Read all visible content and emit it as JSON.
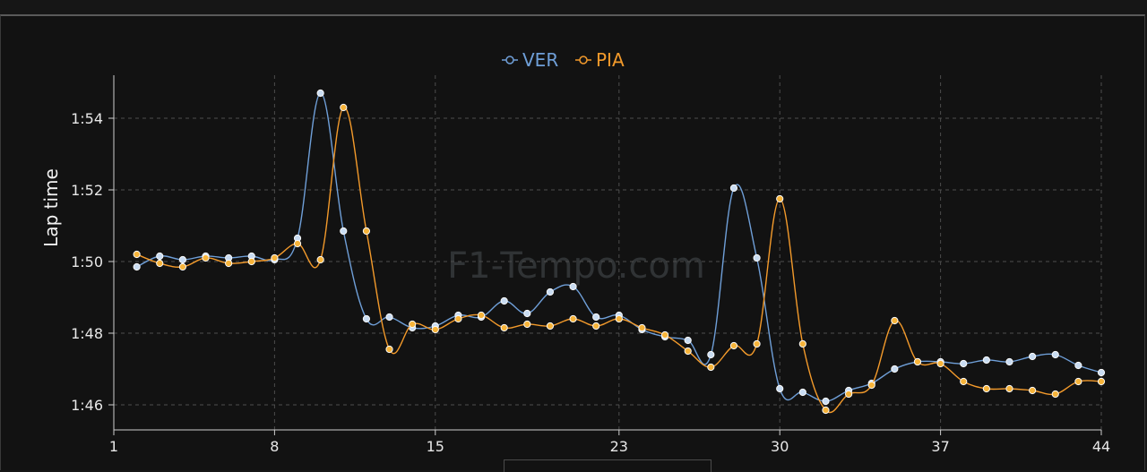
{
  "watermark": "F1-Tempo.com",
  "chart_data": {
    "type": "line",
    "ylabel": "Lap time",
    "xlabel": "",
    "x_ticks": [
      1,
      8,
      15,
      23,
      30,
      37,
      44
    ],
    "y_ticks": [
      {
        "value": 106,
        "label": "1:46"
      },
      {
        "value": 108,
        "label": "1:48"
      },
      {
        "value": 110,
        "label": "1:50"
      },
      {
        "value": 112,
        "label": "1:52"
      },
      {
        "value": 114,
        "label": "1:54"
      }
    ],
    "xlim": [
      1,
      44
    ],
    "ylim": [
      105.3,
      115.2
    ],
    "grid": true,
    "legend_position": "top-center",
    "series": [
      {
        "name": "VER",
        "color": "#6f9fd8",
        "marker_fill": "#c9dcf2",
        "x": [
          2,
          3,
          4,
          5,
          6,
          7,
          8,
          9,
          10,
          11,
          12,
          13,
          14,
          15,
          16,
          17,
          18,
          19,
          20,
          21,
          22,
          23,
          24,
          25,
          26,
          27,
          28,
          29,
          30,
          31,
          32,
          33,
          34,
          35,
          36,
          37,
          38,
          39,
          40,
          41,
          42,
          43,
          44
        ],
        "y": [
          109.85,
          110.15,
          110.05,
          110.15,
          110.1,
          110.15,
          110.05,
          110.65,
          114.7,
          110.85,
          108.4,
          108.45,
          108.15,
          108.2,
          108.5,
          108.45,
          108.9,
          108.55,
          109.15,
          109.3,
          108.45,
          108.5,
          108.1,
          107.9,
          107.8,
          107.4,
          112.05,
          110.1,
          106.45,
          106.35,
          106.1,
          106.4,
          106.6,
          107.0,
          107.2,
          107.2,
          107.15,
          107.25,
          107.2,
          107.35,
          107.4,
          107.1,
          106.9
        ]
      },
      {
        "name": "PIA",
        "color": "#f39a2b",
        "marker_fill": "#f7b43a",
        "x": [
          2,
          3,
          4,
          5,
          6,
          7,
          8,
          9,
          10,
          11,
          12,
          13,
          14,
          15,
          16,
          17,
          18,
          19,
          20,
          21,
          22,
          23,
          24,
          25,
          26,
          27,
          28,
          29,
          30,
          31,
          32,
          33,
          34,
          35,
          36,
          37,
          38,
          39,
          40,
          41,
          42,
          43,
          44
        ],
        "y": [
          110.2,
          109.95,
          109.85,
          110.1,
          109.95,
          110.0,
          110.1,
          110.5,
          110.05,
          114.3,
          110.85,
          107.55,
          108.25,
          108.1,
          108.4,
          108.5,
          108.15,
          108.25,
          108.2,
          108.4,
          108.2,
          108.4,
          108.15,
          107.95,
          107.5,
          107.05,
          107.65,
          107.7,
          111.75,
          107.7,
          105.85,
          106.3,
          106.55,
          108.35,
          107.2,
          107.15,
          106.65,
          106.45,
          106.45,
          106.4,
          106.3,
          106.65,
          106.65
        ]
      }
    ]
  }
}
